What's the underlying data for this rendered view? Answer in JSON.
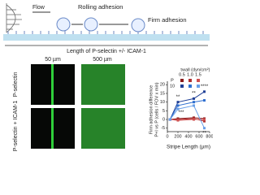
{
  "diagram": {
    "flow": "Flow",
    "rolling": "Rolling adhesion",
    "firm": "Firm adhesion",
    "length": "Length of P-selectin +/- ICAM-1"
  },
  "images": {
    "columns": [
      "50 µm",
      "500 µm"
    ],
    "rows": [
      "P-selectin",
      "P-selectin + ICAM-1"
    ]
  },
  "chart_data": {
    "type": "line",
    "x_label": "Stripe Length (µm)",
    "y_label": [
      "Firm adhesion difference",
      "P+I vs P (cells / FOV x min)"
    ],
    "legend": {
      "title": "τwall (dyn/cm²)",
      "columns": [
        "0.5",
        "1.0",
        "1.5"
      ],
      "rows": [
        "P",
        "10"
      ]
    },
    "x": [
      50,
      200,
      500,
      700
    ],
    "series": [
      {
        "color": "#8b1a1a",
        "values": [
          0,
          0.5,
          1,
          0.5
        ]
      },
      {
        "color": "#b03030",
        "values": [
          0,
          0,
          0.5,
          -1
        ]
      },
      {
        "color": "#d05050",
        "values": [
          0,
          -0.5,
          0,
          0
        ]
      },
      {
        "color": "#1f3f96",
        "values": [
          0,
          10,
          12,
          16
        ]
      },
      {
        "color": "#2f6fd0",
        "values": [
          0,
          8,
          10,
          11
        ]
      },
      {
        "color": "#6aa0e8",
        "values": [
          0,
          6,
          8,
          -5
        ]
      }
    ],
    "annotations": [
      "**",
      "***",
      "****",
      "**",
      "**"
    ],
    "xlim": [
      0,
      800
    ],
    "xticks": [
      0,
      200,
      400,
      600,
      800
    ],
    "ylim": [
      -7,
      22
    ],
    "yticks": [
      -5,
      0,
      5,
      10,
      15,
      20
    ]
  }
}
